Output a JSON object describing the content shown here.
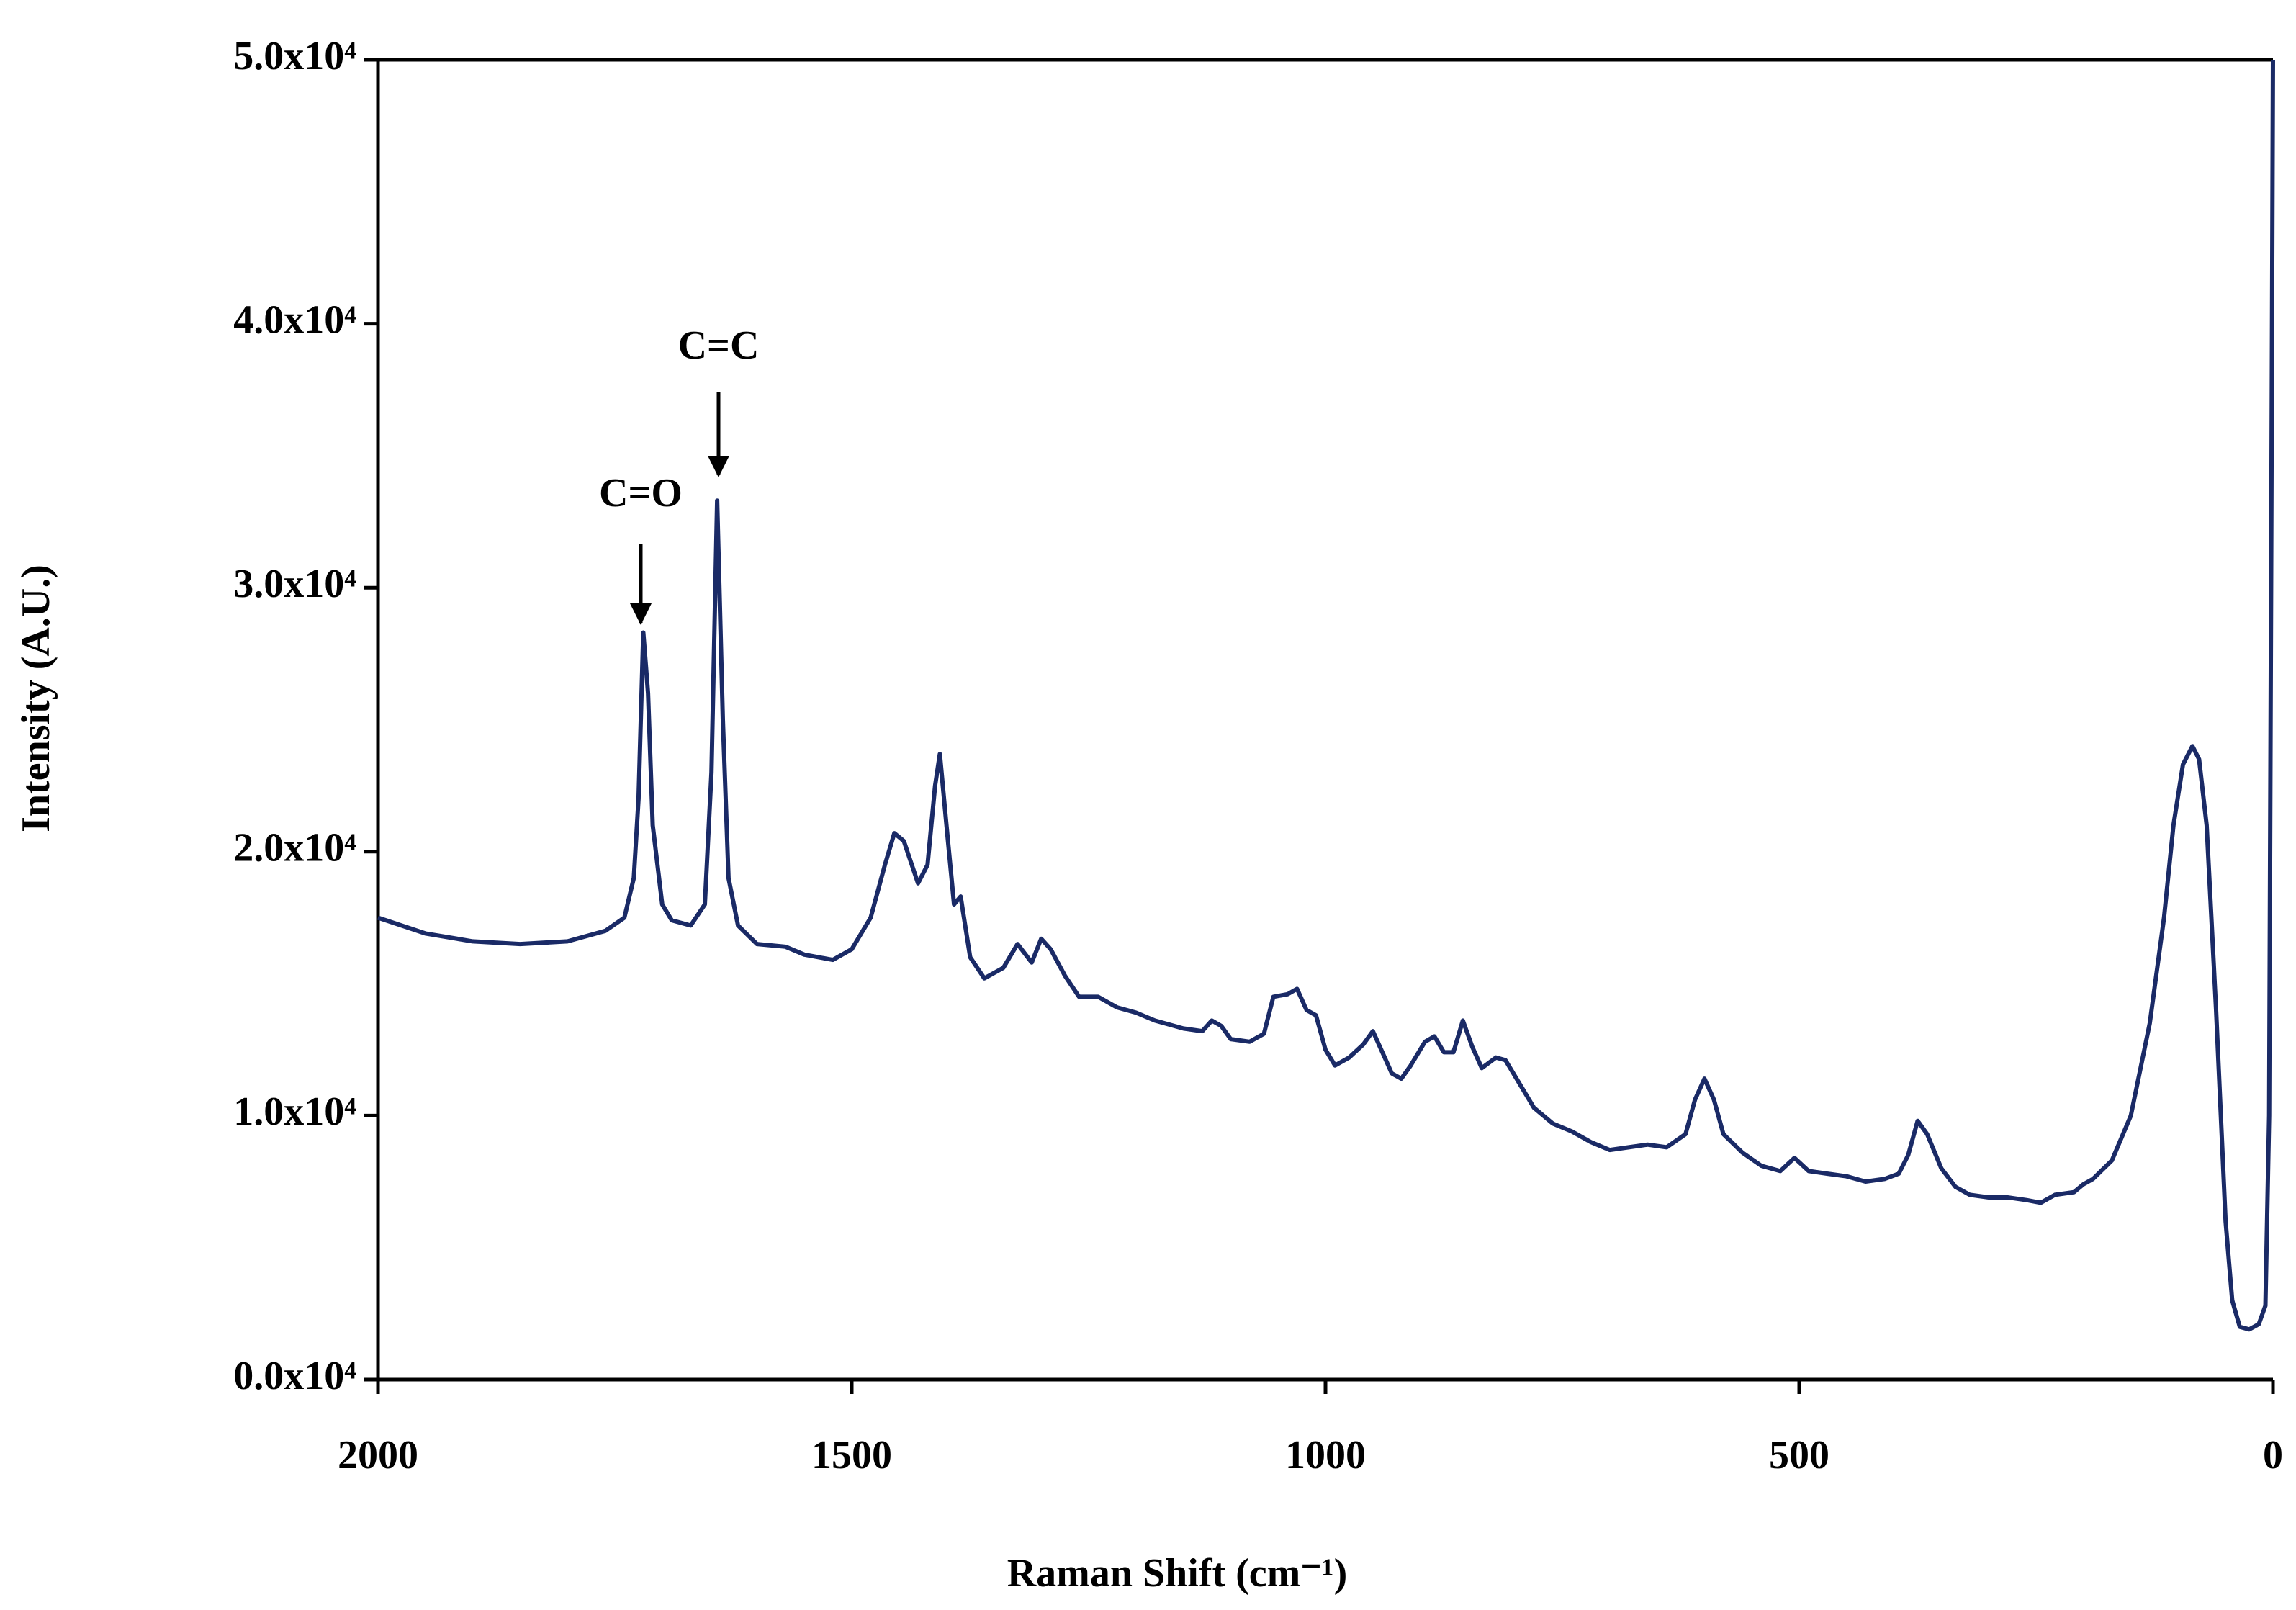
{
  "chart_data": {
    "type": "line",
    "xlabel": "Raman Shift (cm⁻¹)",
    "ylabel": "Intensity (A.U.)",
    "annotations": [
      {
        "text": "C=O"
      },
      {
        "text": "C=C"
      }
    ],
    "x": [
      2000,
      1950,
      1900,
      1850,
      1800,
      1760,
      1740,
      1730,
      1725,
      1720,
      1715,
      1710,
      1700,
      1690,
      1670,
      1655,
      1648,
      1642,
      1636,
      1630,
      1620,
      1600,
      1570,
      1550,
      1520,
      1500,
      1480,
      1465,
      1455,
      1445,
      1430,
      1420,
      1412,
      1407,
      1400,
      1392,
      1385,
      1375,
      1360,
      1340,
      1325,
      1310,
      1300,
      1290,
      1275,
      1260,
      1240,
      1220,
      1200,
      1180,
      1150,
      1130,
      1120,
      1110,
      1100,
      1080,
      1065,
      1055,
      1040,
      1030,
      1020,
      1010,
      1000,
      990,
      975,
      960,
      950,
      940,
      930,
      920,
      910,
      895,
      885,
      875,
      865,
      855,
      845,
      835,
      820,
      810,
      795,
      780,
      760,
      740,
      720,
      700,
      680,
      660,
      640,
      620,
      610,
      600,
      590,
      580,
      560,
      540,
      520,
      505,
      490,
      470,
      450,
      430,
      410,
      395,
      385,
      375,
      365,
      350,
      335,
      320,
      300,
      280,
      260,
      245,
      230,
      210,
      200,
      190,
      170,
      150,
      130,
      115,
      105,
      95,
      85,
      78,
      70,
      60,
      50,
      43,
      35,
      25,
      15,
      8,
      4,
      2,
      0
    ],
    "series": [
      {
        "color": "#1a2a66",
        "values": [
          17500,
          16900,
          16600,
          16500,
          16600,
          17000,
          17500,
          19000,
          22000,
          28300,
          26000,
          21000,
          18000,
          17400,
          17200,
          18000,
          23000,
          33300,
          25000,
          19000,
          17200,
          16500,
          16400,
          16100,
          15900,
          16300,
          17500,
          19500,
          20700,
          20400,
          18800,
          19500,
          22500,
          23700,
          21000,
          18000,
          18300,
          16000,
          15200,
          15600,
          16500,
          15800,
          16700,
          16300,
          15300,
          14500,
          14500,
          14100,
          13900,
          13600,
          13300,
          13200,
          13600,
          13400,
          12900,
          12800,
          13100,
          14500,
          14600,
          14800,
          14000,
          13800,
          12500,
          11900,
          12200,
          12700,
          13200,
          12400,
          11600,
          11400,
          11900,
          12800,
          13000,
          12400,
          12400,
          13600,
          12600,
          11800,
          12200,
          12100,
          11200,
          10300,
          9700,
          9400,
          9000,
          8700,
          8800,
          8900,
          8800,
          9300,
          10600,
          11400,
          10600,
          9300,
          8600,
          8100,
          7900,
          8400,
          7900,
          7800,
          7700,
          7500,
          7600,
          7800,
          8500,
          9800,
          9300,
          8000,
          7300,
          7000,
          6900,
          6900,
          6800,
          6700,
          7000,
          7100,
          7400,
          7600,
          8300,
          10000,
          13500,
          17500,
          21000,
          23300,
          24000,
          23500,
          21000,
          14000,
          6000,
          3000,
          2000,
          1900,
          2100,
          2800,
          10000,
          30000,
          50000
        ]
      }
    ],
    "xlim": [
      2000,
      0
    ],
    "xticks": [
      2000,
      1500,
      1000,
      500,
      0
    ],
    "ylim": [
      0,
      50000
    ],
    "yticks": [
      {
        "value": 0,
        "label": "0.0x10⁴"
      },
      {
        "value": 10000,
        "label": "1.0x10⁴"
      },
      {
        "value": 20000,
        "label": "2.0x10⁴"
      },
      {
        "value": 30000,
        "label": "3.0x10⁴"
      },
      {
        "value": 40000,
        "label": "4.0x10⁴"
      },
      {
        "value": 50000,
        "label": "5.0x10⁴"
      }
    ]
  }
}
